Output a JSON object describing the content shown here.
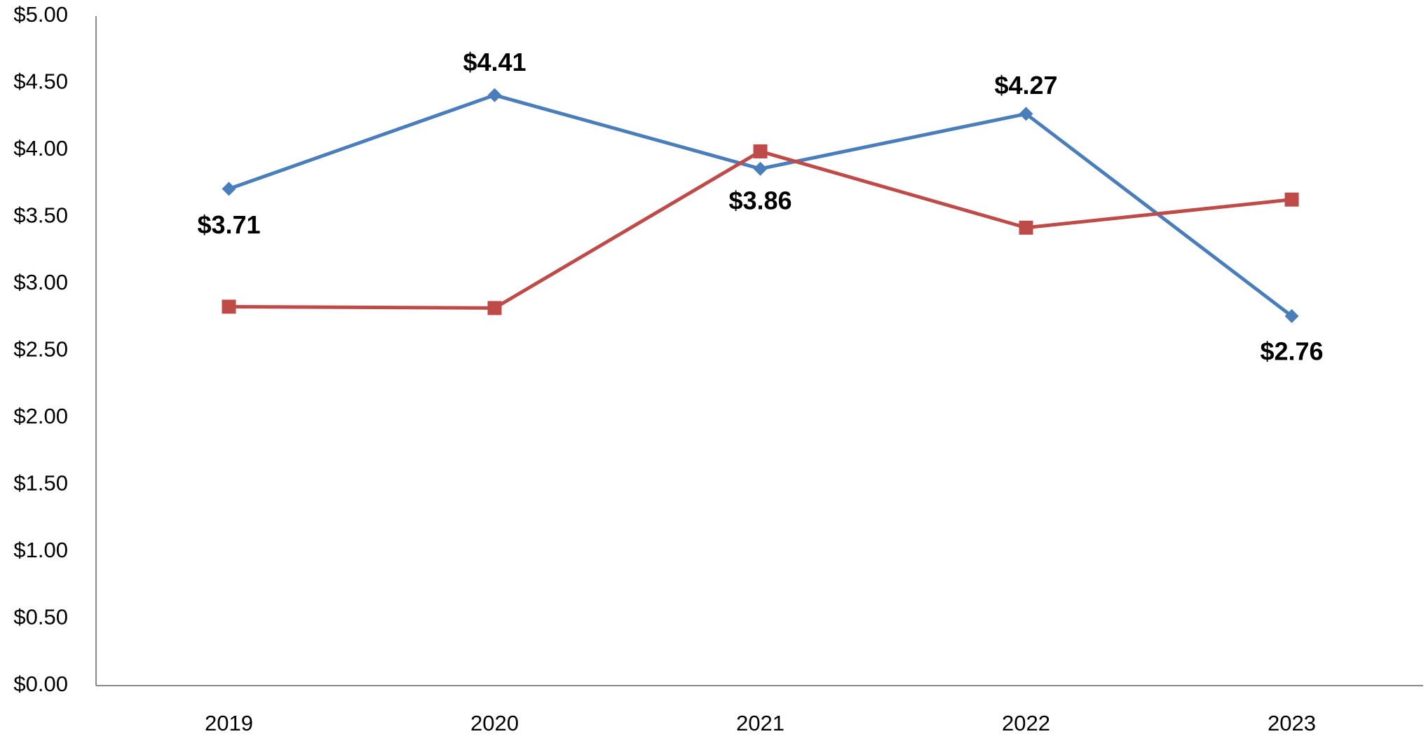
{
  "chart_data": {
    "type": "line",
    "categories": [
      "2019",
      "2020",
      "2021",
      "2022",
      "2023"
    ],
    "series": [
      {
        "color": "#4a7ebb",
        "marker": "diamond",
        "values": [
          3.71,
          4.41,
          3.86,
          4.27,
          2.76
        ],
        "value_labels": [
          "$3.71",
          "$4.41",
          "$3.86",
          "$4.27",
          "$2.76"
        ]
      },
      {
        "color": "#be4b48",
        "marker": "square",
        "values": [
          2.83,
          2.82,
          3.99,
          3.42,
          3.63
        ]
      }
    ],
    "ylim": [
      0,
      5
    ],
    "yticks": [
      {
        "value": 0,
        "label": "$0.00"
      },
      {
        "value": 0.5,
        "label": "$0.50"
      },
      {
        "value": 1,
        "label": "$1.00"
      },
      {
        "value": 1.5,
        "label": "$1.50"
      },
      {
        "value": 2,
        "label": "$2.00"
      },
      {
        "value": 2.5,
        "label": "$2.50"
      },
      {
        "value": 3,
        "label": "$3.00"
      },
      {
        "value": 3.5,
        "label": "$3.50"
      },
      {
        "value": 4,
        "label": "$4.00"
      },
      {
        "value": 4.5,
        "label": "$4.50"
      },
      {
        "value": 5,
        "label": "$5.00"
      }
    ],
    "grid": false
  }
}
